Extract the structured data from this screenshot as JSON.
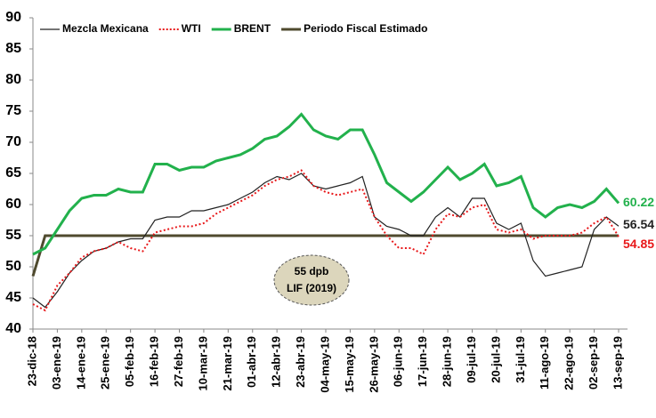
{
  "chart_data": {
    "type": "line",
    "categories": [
      "23-dic-18",
      null,
      "03-ene-19",
      null,
      "14-ene-19",
      null,
      "25-ene-19",
      null,
      "05-feb-19",
      null,
      "16-feb-19",
      null,
      "27-feb-19",
      null,
      "10-mar-19",
      null,
      "21-mar-19",
      null,
      "01-abr-19",
      null,
      "12-abr-19",
      null,
      "23-abr-19",
      null,
      "04-may-19",
      null,
      "15-may-19",
      null,
      "26-may-19",
      null,
      "06-jun-19",
      null,
      "17-jun-19",
      null,
      "28-jun-19",
      null,
      "09-jul-19",
      null,
      "20-jul-19",
      null,
      "31-jul-19",
      null,
      "11-ago-19",
      null,
      "22-ago-19",
      null,
      "02-sep-19",
      null,
      "13-sep-19"
    ],
    "series": [
      {
        "name": "Mezcla Mexicana",
        "color": "#222222",
        "line_style": "solid",
        "values": [
          45,
          43.5,
          46,
          49,
          51,
          52.5,
          53,
          54,
          54.5,
          54.5,
          57.5,
          58,
          58,
          59,
          59,
          59.5,
          60,
          61,
          62,
          63.5,
          64.5,
          64,
          65,
          63,
          62.5,
          63,
          63.5,
          64.5,
          58,
          56.5,
          56,
          55,
          55,
          58,
          59.5,
          58,
          61,
          61,
          57,
          56,
          57,
          51,
          48.5,
          49,
          49.5,
          50,
          56,
          58,
          56.54
        ]
      },
      {
        "name": "WTI",
        "color": "#e8191b",
        "line_style": "dotted",
        "values": [
          44,
          43,
          47,
          49,
          51.5,
          52.5,
          53,
          54,
          53,
          52.5,
          55.5,
          56,
          56.5,
          56.5,
          57,
          58.5,
          59.5,
          60.5,
          61.5,
          63,
          64,
          64.5,
          65.5,
          63,
          62,
          61.5,
          62,
          62.5,
          58,
          55,
          53,
          53,
          52,
          56,
          58.5,
          58,
          59.5,
          60,
          56,
          55.5,
          56,
          54.5,
          55,
          55,
          55,
          55.5,
          57,
          58,
          54.85
        ]
      },
      {
        "name": "BRENT",
        "color": "#22b14c",
        "line_style": "solid",
        "values": [
          52,
          53,
          56,
          59,
          61,
          61.5,
          61.5,
          62.5,
          62,
          62,
          66.5,
          66.5,
          65.5,
          66,
          66,
          67,
          67.5,
          68,
          69,
          70.5,
          71,
          72.5,
          74.5,
          72,
          71,
          70.5,
          72,
          72,
          68,
          63.5,
          62,
          60.5,
          62,
          64,
          66,
          64,
          65,
          66.5,
          63,
          63.5,
          64.5,
          59.5,
          58,
          59.5,
          60,
          59.5,
          60.5,
          62.5,
          60.22
        ]
      },
      {
        "name": "Periodo Fiscal Estimado",
        "color": "#4f4a2e",
        "line_style": "solid",
        "values": [
          48.5,
          55,
          55,
          55,
          55,
          55,
          55,
          55,
          55,
          55,
          55,
          55,
          55,
          55,
          55,
          55,
          55,
          55,
          55,
          55,
          55,
          55,
          55,
          55,
          55,
          55,
          55,
          55,
          55,
          55,
          55,
          55,
          55,
          55,
          55,
          55,
          55,
          55,
          55,
          55,
          55,
          55,
          55,
          55,
          55,
          55,
          55,
          55,
          55
        ]
      }
    ],
    "ylim": [
      40,
      90
    ],
    "yticks": [
      40,
      45,
      50,
      55,
      60,
      65,
      70,
      75,
      80,
      85,
      90
    ],
    "grid": false,
    "legend": "top",
    "annotations": [
      "55 dpb",
      "LIF (2019)"
    ]
  }
}
